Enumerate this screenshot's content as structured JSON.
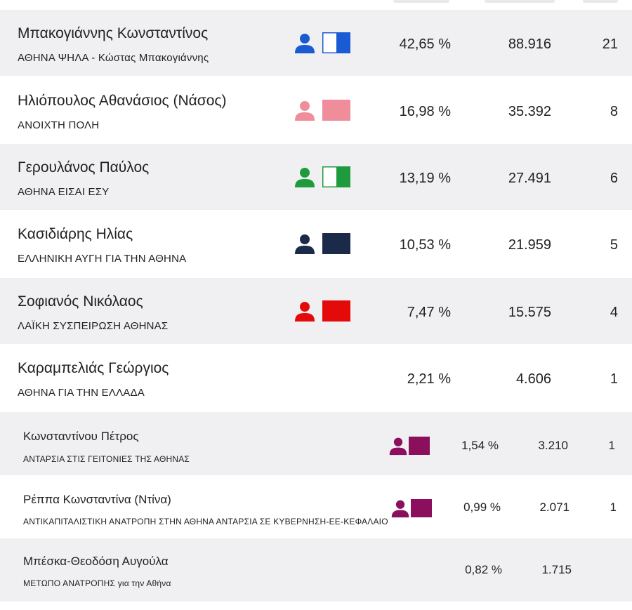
{
  "candidates": [
    {
      "name": "Μπακογιάννης Κωνσταντίνος",
      "party": "ΑΘΗΝΑ ΨΗΛΑ - Κώστας Μπακογιάννης",
      "pct": "42,65 %",
      "votes": "88.916",
      "seats": "21",
      "color": "#1a5bd3",
      "flag_style": "half-white"
    },
    {
      "name": "Ηλιόπουλος Αθανάσιος (Νάσος)",
      "party": "ΑΝΟΙΧΤΗ ΠΟΛΗ",
      "pct": "16,98 %",
      "votes": "35.392",
      "seats": "8",
      "color": "#ef8d9a",
      "flag_style": "solid"
    },
    {
      "name": "Γερουλάνος Παύλος",
      "party": "ΑΘΗΝΑ ΕΙΣΑΙ ΕΣΥ",
      "pct": "13,19 %",
      "votes": "27.491",
      "seats": "6",
      "color": "#1f9a3c",
      "flag_style": "half-white"
    },
    {
      "name": "Κασιδιάρης Ηλίας",
      "party": "ΕΛΛΗΝΙΚΗ ΑΥΓΗ ΓΙΑ ΤΗΝ ΑΘΗΝΑ",
      "pct": "10,53 %",
      "votes": "21.959",
      "seats": "5",
      "color": "#1c2a4a",
      "flag_style": "solid"
    },
    {
      "name": "Σοφιανός Νικόλαος",
      "party": "ΛΑΪΚΗ ΣΥΣΠΕΙΡΩΣΗ ΑΘΗΝΑΣ",
      "pct": "7,47 %",
      "votes": "15.575",
      "seats": "4",
      "color": "#e40a0a",
      "flag_style": "solid"
    },
    {
      "name": "Καραμπελιάς Γεώργιος",
      "party": "ΑΘΗΝΑ ΓΙΑ ΤΗΝ ΕΛΛΑΔΑ",
      "pct": "2,21 %",
      "votes": "4.606",
      "seats": "1",
      "color": "",
      "flag_style": "none"
    },
    {
      "name": "Κωνσταντίνου Πέτρος",
      "party": "ΑΝΤΑΡΣΙΑ ΣΤΙΣ ΓΕΙΤΟΝΙΕΣ ΤΗΣ ΑΘΗΝΑΣ",
      "pct": "1,54 %",
      "votes": "3.210",
      "seats": "1",
      "color": "#8b0f5c",
      "flag_style": "solid"
    },
    {
      "name": "Ρέππα Κωνσταντίνα (Ντίνα)",
      "party": "ΑΝΤΙΚΑΠΙΤΑΛΙΣΤΙΚΗ ΑΝΑΤΡΟΠΗ ΣΤΗΝ ΑΘΗΝΑ ΑΝΤΑΡΣΙΑ ΣΕ ΚΥΒΕΡΝΗΣΗ-ΕΕ-ΚΕΦΑΛΑΙΟ",
      "pct": "0,99 %",
      "votes": "2.071",
      "seats": "1",
      "color": "#8b0f5c",
      "flag_style": "solid"
    },
    {
      "name": "Μπέσκα-Θεοδόση Αυγούλα",
      "party": "ΜΕΤΩΠΟ ΑΝΑΤΡΟΠΗΣ για την Αθήνα",
      "pct": "0,82 %",
      "votes": "1.715",
      "seats": "",
      "color": "",
      "flag_style": "none"
    }
  ]
}
